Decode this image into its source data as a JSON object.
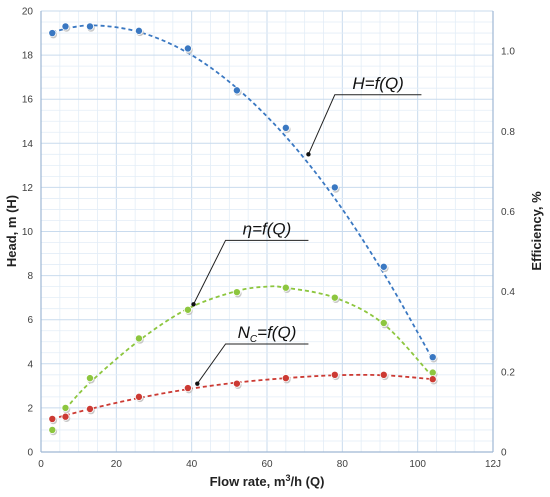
{
  "chart_data": {
    "type": "scatter",
    "title": "",
    "xlabel": "Flow rate, m3/h (Q)",
    "xlabel_parts": {
      "main": "Flow rate, m",
      "sup": "3",
      "rest": "/h (Q)"
    },
    "ylabel": "Head, m (H)",
    "y2label": "Efficiency, %",
    "xlim": [
      0,
      120
    ],
    "ylim": [
      0,
      20
    ],
    "y2lim": [
      0,
      1.1
    ],
    "x_ticks": [
      "0",
      "20",
      "40",
      "60",
      "80",
      "100",
      "12J"
    ],
    "x_tick_values": [
      0,
      20,
      40,
      60,
      80,
      100,
      120
    ],
    "y_ticks": [
      "0",
      "2",
      "4",
      "6",
      "8",
      "10",
      "12",
      "14",
      "16",
      "18",
      "20"
    ],
    "y_tick_values": [
      0,
      2,
      4,
      6,
      8,
      10,
      12,
      14,
      16,
      18,
      20
    ],
    "y2_ticks": [
      "0",
      "0.2",
      "0.4",
      "0.6",
      "0.8",
      "1.0"
    ],
    "y2_tick_values": [
      0,
      0.2,
      0.4,
      0.6,
      0.8,
      1.0
    ],
    "grid": true,
    "series": [
      {
        "name": "H=f(Q)",
        "axis": "left",
        "color": "#3a78c2",
        "x": [
          3,
          6.5,
          13,
          26,
          39,
          52,
          65,
          78,
          91,
          104
        ],
        "y": [
          19.0,
          19.3,
          19.3,
          19.1,
          18.3,
          16.4,
          14.7,
          12.0,
          8.4,
          4.3
        ],
        "fit": [
          [
            3,
            19.05
          ],
          [
            13,
            19.35
          ],
          [
            26,
            19.05
          ],
          [
            39,
            18.1
          ],
          [
            52,
            16.5
          ],
          [
            65,
            14.3
          ],
          [
            78,
            11.5
          ],
          [
            91,
            8.1
          ],
          [
            104,
            4.2
          ]
        ]
      },
      {
        "name": "η=f(Q)",
        "axis": "left",
        "color": "#8dc63f",
        "x": [
          3,
          6.5,
          13,
          26,
          39,
          52,
          65,
          78,
          91,
          104
        ],
        "y": [
          1.0,
          2.0,
          3.35,
          5.15,
          6.45,
          7.25,
          7.45,
          7.0,
          5.85,
          3.6
        ],
        "fit": [
          [
            6.5,
            1.95
          ],
          [
            13,
            3.15
          ],
          [
            26,
            5.05
          ],
          [
            39,
            6.5
          ],
          [
            52,
            7.3
          ],
          [
            60,
            7.5
          ],
          [
            65,
            7.45
          ],
          [
            78,
            7.0
          ],
          [
            91,
            5.8
          ],
          [
            104,
            3.4
          ]
        ]
      },
      {
        "name": "Nc=f(Q)",
        "axis": "left",
        "color": "#cc3a33",
        "x": [
          3,
          6.5,
          13,
          26,
          39,
          52,
          65,
          78,
          91,
          104
        ],
        "y": [
          1.5,
          1.6,
          1.95,
          2.5,
          2.9,
          3.1,
          3.35,
          3.5,
          3.5,
          3.3
        ],
        "fit": [
          [
            3,
            1.5
          ],
          [
            13,
            1.95
          ],
          [
            26,
            2.45
          ],
          [
            39,
            2.85
          ],
          [
            52,
            3.15
          ],
          [
            65,
            3.35
          ],
          [
            78,
            3.48
          ],
          [
            91,
            3.48
          ],
          [
            104,
            3.3
          ]
        ]
      }
    ],
    "annotations": [
      {
        "label": "H=f(Q)",
        "base": "H=f(Q)",
        "sub": "",
        "target_x": 71,
        "target_y": 13.5,
        "elbow_x": 78,
        "elbow_y": 16.2,
        "line_end_x": 101
      },
      {
        "label": "η=f(Q)",
        "base": "η=f(Q)",
        "sub": "",
        "target_x": 40.5,
        "target_y": 6.7,
        "elbow_x": 49,
        "elbow_y": 9.6,
        "line_end_x": 71
      },
      {
        "label": "Nc=f(Q)",
        "base": "N",
        "sub": "C",
        "rest": "=f(Q)",
        "target_x": 41.5,
        "target_y": 3.1,
        "elbow_x": 49,
        "elbow_y": 4.9,
        "line_end_x": 71
      }
    ]
  }
}
